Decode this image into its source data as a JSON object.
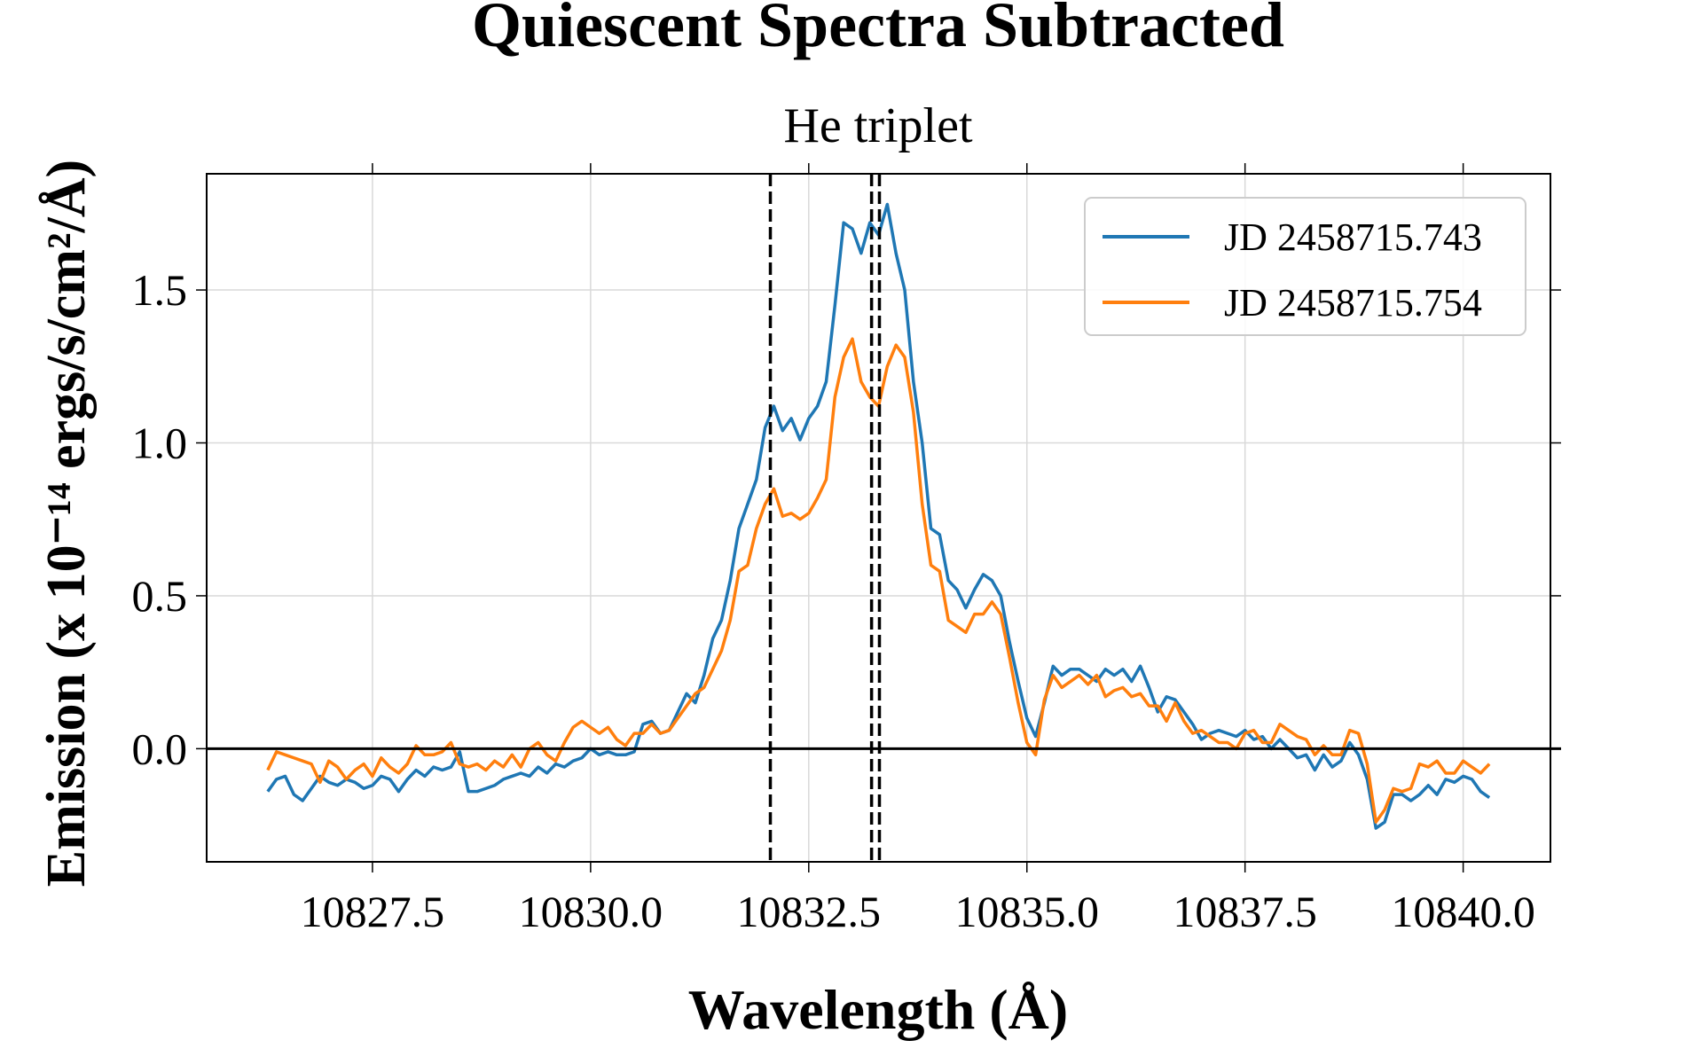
{
  "chart_data": {
    "type": "line",
    "title": "Quiescent Spectra Subtracted",
    "x_label": "Wavelength (Å)",
    "y_label": "Emission (x 10⁻¹⁴ ergs/s/cm²/Å)",
    "top_label": "He triplet",
    "vlines": [
      10832.06,
      10833.22,
      10833.31
    ],
    "hline": 0,
    "xlim": [
      10825.6,
      10841.0
    ],
    "ylim": [
      -0.37,
      1.88
    ],
    "xticks": [
      10827.5,
      {
        "value": 10830.0,
        "label": "10830.0"
      },
      10832.5,
      {
        "value": 10835.0,
        "label": "10835.0"
      },
      10837.5,
      {
        "value": 10840.0,
        "label": "10840.0"
      }
    ],
    "yticks": [
      {
        "value": 0.0,
        "label": "0.0"
      },
      0.5,
      {
        "value": 1.0,
        "label": "1.0"
      },
      1.5
    ],
    "grid": true,
    "legend": "upper right",
    "x": [
      10826.3,
      10826.4,
      10826.5,
      10826.6,
      10826.7,
      10826.8,
      10826.9,
      10827.0,
      10827.1,
      10827.2,
      10827.3,
      10827.4,
      10827.5,
      10827.6,
      10827.7,
      10827.8,
      10827.9,
      10828.0,
      10828.1,
      10828.2,
      10828.3,
      10828.4,
      10828.5,
      10828.6,
      10828.7,
      10828.8,
      10828.9,
      10829.0,
      10829.1,
      10829.2,
      10829.3,
      10829.4,
      10829.5,
      10829.6,
      10829.7,
      10829.8,
      10829.9,
      10830.0,
      10830.1,
      10830.2,
      10830.3,
      10830.4,
      10830.5,
      10830.6,
      10830.7,
      10830.8,
      10830.9,
      10831.0,
      10831.1,
      10831.2,
      10831.3,
      10831.4,
      10831.5,
      10831.6,
      10831.7,
      10831.8,
      10831.9,
      10832.0,
      10832.1,
      10832.2,
      10832.3,
      10832.4,
      10832.5,
      10832.6,
      10832.7,
      10832.8,
      10832.9,
      10833.0,
      10833.1,
      10833.2,
      10833.3,
      10833.4,
      10833.5,
      10833.6,
      10833.7,
      10833.8,
      10833.9,
      10834.0,
      10834.1,
      10834.2,
      10834.3,
      10834.4,
      10834.5,
      10834.6,
      10834.7,
      10834.8,
      10834.9,
      10835.0,
      10835.1,
      10835.2,
      10835.3,
      10835.4,
      10835.5,
      10835.6,
      10835.7,
      10835.8,
      10835.9,
      10836.0,
      10836.1,
      10836.2,
      10836.3,
      10836.4,
      10836.5,
      10836.6,
      10836.7,
      10836.8,
      10836.9,
      10837.0,
      10837.1,
      10837.2,
      10837.3,
      10837.4,
      10837.5,
      10837.6,
      10837.7,
      10837.8,
      10837.9,
      10838.0,
      10838.1,
      10838.2,
      10838.3,
      10838.4,
      10838.5,
      10838.6,
      10838.7,
      10838.8,
      10838.9,
      10839.0,
      10839.1,
      10839.2,
      10839.3,
      10839.4,
      10839.5,
      10839.6,
      10839.7,
      10839.8,
      10839.9,
      10840.0,
      10840.1,
      10840.2,
      10840.3
    ],
    "series": [
      {
        "name": "JD 2458715.743",
        "color": "#1f77b4",
        "values": [
          -0.14,
          -0.1,
          -0.09,
          -0.15,
          -0.17,
          -0.13,
          -0.09,
          -0.11,
          -0.12,
          -0.1,
          -0.11,
          -0.13,
          -0.12,
          -0.09,
          -0.1,
          -0.14,
          -0.1,
          -0.07,
          -0.09,
          -0.06,
          -0.07,
          -0.06,
          -0.01,
          -0.14,
          -0.14,
          -0.13,
          -0.12,
          -0.1,
          -0.09,
          -0.08,
          -0.09,
          -0.06,
          -0.08,
          -0.05,
          -0.06,
          -0.04,
          -0.03,
          0.0,
          -0.02,
          -0.01,
          -0.02,
          -0.02,
          -0.01,
          0.08,
          0.09,
          0.05,
          0.06,
          0.12,
          0.18,
          0.15,
          0.24,
          0.36,
          0.42,
          0.55,
          0.72,
          0.8,
          0.88,
          1.05,
          1.12,
          1.04,
          1.08,
          1.01,
          1.08,
          1.12,
          1.2,
          1.45,
          1.72,
          1.7,
          1.62,
          1.72,
          1.68,
          1.78,
          1.62,
          1.5,
          1.2,
          1.0,
          0.72,
          0.7,
          0.55,
          0.52,
          0.46,
          0.52,
          0.57,
          0.55,
          0.5,
          0.35,
          0.22,
          0.1,
          0.04,
          0.15,
          0.27,
          0.24,
          0.26,
          0.26,
          0.24,
          0.22,
          0.26,
          0.24,
          0.26,
          0.22,
          0.27,
          0.2,
          0.12,
          0.17,
          0.16,
          0.12,
          0.08,
          0.03,
          0.05,
          0.06,
          0.05,
          0.04,
          0.06,
          0.03,
          0.04,
          0.0,
          0.03,
          0.0,
          -0.03,
          -0.02,
          -0.07,
          -0.02,
          -0.06,
          -0.04,
          0.02,
          -0.02,
          -0.1,
          -0.26,
          -0.24,
          -0.15,
          -0.15,
          -0.17,
          -0.15,
          -0.12,
          -0.15,
          -0.1,
          -0.11,
          -0.09,
          -0.1,
          -0.14,
          -0.16
        ]
      },
      {
        "name": "JD 2458715.754",
        "color": "#ff7f0e",
        "values": [
          -0.07,
          -0.01,
          -0.02,
          -0.03,
          -0.04,
          -0.05,
          -0.11,
          -0.04,
          -0.06,
          -0.1,
          -0.07,
          -0.05,
          -0.09,
          -0.03,
          -0.06,
          -0.08,
          -0.05,
          0.01,
          -0.02,
          -0.02,
          -0.01,
          0.02,
          -0.05,
          -0.06,
          -0.05,
          -0.07,
          -0.04,
          -0.06,
          -0.02,
          -0.06,
          0.0,
          0.02,
          -0.02,
          -0.04,
          0.02,
          0.07,
          0.09,
          0.07,
          0.05,
          0.07,
          0.03,
          0.01,
          0.05,
          0.05,
          0.08,
          0.05,
          0.06,
          0.1,
          0.14,
          0.18,
          0.2,
          0.26,
          0.32,
          0.42,
          0.58,
          0.6,
          0.72,
          0.8,
          0.85,
          0.76,
          0.77,
          0.75,
          0.77,
          0.82,
          0.88,
          1.15,
          1.28,
          1.34,
          1.2,
          1.15,
          1.12,
          1.25,
          1.32,
          1.28,
          1.1,
          0.8,
          0.6,
          0.58,
          0.42,
          0.4,
          0.38,
          0.44,
          0.44,
          0.48,
          0.44,
          0.3,
          0.15,
          0.02,
          -0.02,
          0.16,
          0.24,
          0.2,
          0.22,
          0.24,
          0.21,
          0.24,
          0.17,
          0.19,
          0.2,
          0.17,
          0.18,
          0.14,
          0.14,
          0.09,
          0.15,
          0.09,
          0.05,
          0.06,
          0.04,
          0.02,
          0.02,
          0.0,
          0.05,
          0.06,
          0.02,
          0.02,
          0.08,
          0.06,
          0.04,
          0.03,
          -0.02,
          0.01,
          -0.02,
          -0.02,
          0.06,
          0.05,
          -0.05,
          -0.24,
          -0.2,
          -0.13,
          -0.14,
          -0.13,
          -0.05,
          -0.06,
          -0.04,
          -0.08,
          -0.08,
          -0.04,
          -0.06,
          -0.08,
          -0.05
        ]
      }
    ]
  }
}
